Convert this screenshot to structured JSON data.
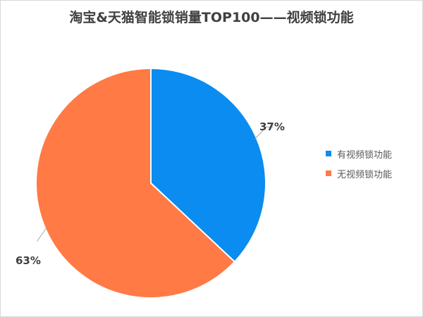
{
  "chart_data": {
    "type": "pie",
    "title": "淘宝&天猫智能锁销量TOP100——视频锁功能",
    "slices": [
      {
        "name": "有视频锁功能",
        "value": 37,
        "label": "37%",
        "color": "#0A8CF0"
      },
      {
        "name": "无视频锁功能",
        "value": 63,
        "label": "63%",
        "color": "#FF7A45"
      }
    ],
    "start": "top, clockwise",
    "legend_position": "right"
  }
}
